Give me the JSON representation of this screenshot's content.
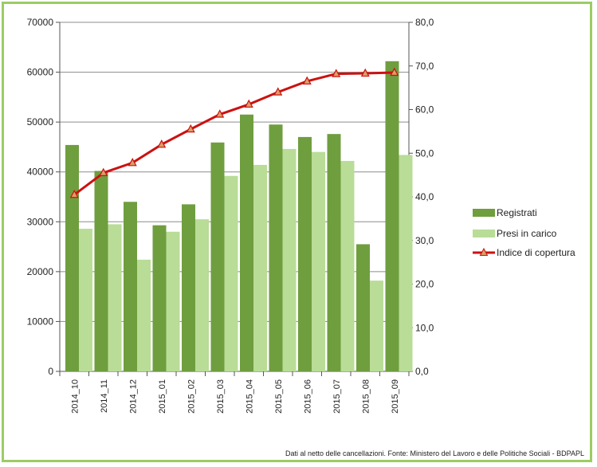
{
  "chart_data": {
    "type": "bar",
    "categories": [
      "2014_10",
      "2014_11",
      "2014_12",
      "2015_01",
      "2015_02",
      "2015_03",
      "2015_04",
      "2015_05",
      "2015_06",
      "2015_07",
      "2015_08",
      "2015_09"
    ],
    "series": [
      {
        "name": "Registrati",
        "kind": "bar",
        "axis": "left",
        "color": "#6f9e3f",
        "values": [
          45400,
          40200,
          34000,
          29300,
          33500,
          45900,
          51500,
          49500,
          47000,
          47600,
          25500,
          62200
        ]
      },
      {
        "name": "Presi in carico",
        "kind": "bar",
        "axis": "left",
        "color": "#b9dc97",
        "values": [
          28600,
          29500,
          22400,
          28000,
          30500,
          39200,
          41400,
          44600,
          44000,
          42200,
          18200,
          43400
        ]
      },
      {
        "name": "Indice di copertura",
        "kind": "line",
        "axis": "right",
        "color": "#cc1111",
        "values": [
          40.5,
          45.5,
          47.8,
          52.0,
          55.5,
          58.9,
          61.2,
          64.0,
          66.5,
          68.2,
          68.3,
          68.5
        ]
      }
    ],
    "y_left": {
      "min": 0,
      "max": 70000,
      "ticks": [
        "0",
        "10000",
        "20000",
        "30000",
        "40000",
        "50000",
        "60000",
        "70000"
      ]
    },
    "y_right": {
      "min": 0,
      "max": 80,
      "ticks": [
        "0,0",
        "10,0",
        "20,0",
        "30,0",
        "40,0",
        "50,0",
        "60,0",
        "70,0",
        "80,0"
      ]
    },
    "grid": true,
    "legend_position": "right"
  },
  "footer": {
    "source": "Dati al netto delle cancellazioni. Fonte: Ministero del Lavoro e delle Politiche Sociali - BDPAPL"
  }
}
